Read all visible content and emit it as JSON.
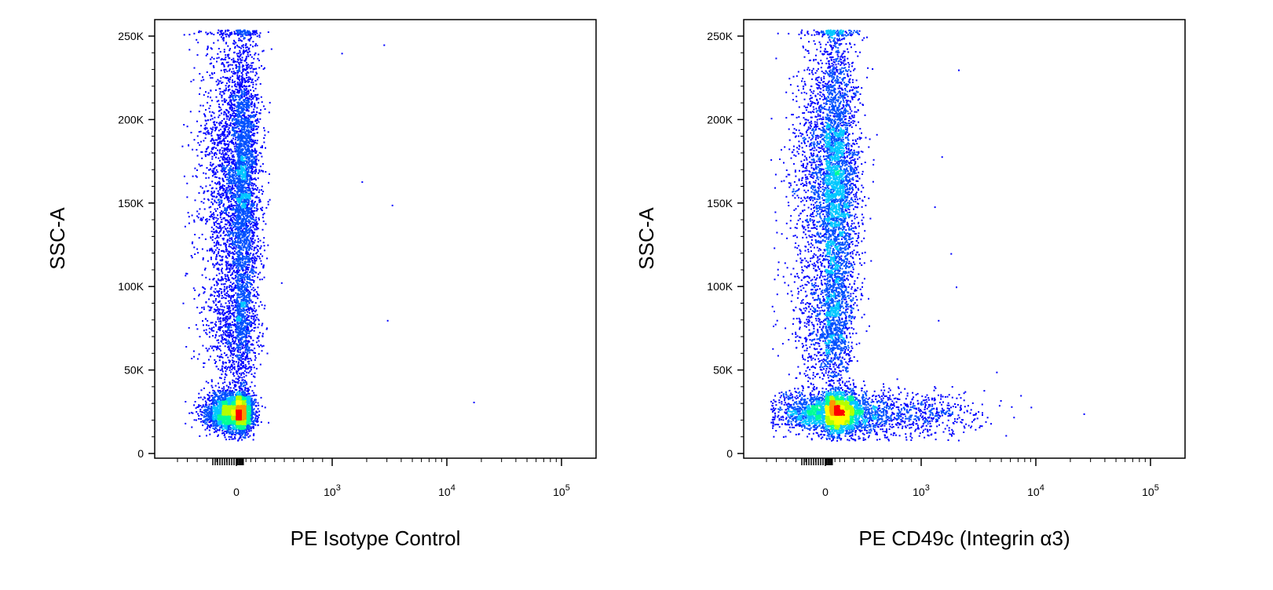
{
  "colors": {
    "density_scale": [
      "#0000ff",
      "#0050ff",
      "#00c8ff",
      "#00ff96",
      "#b4ff00",
      "#ffff00",
      "#ff9600",
      "#ff0000"
    ],
    "axes": "#000000",
    "background": "#ffffff"
  },
  "chart_data": [
    {
      "type": "scatter",
      "subtype": "flow-cytometry-density-dot-plot",
      "title": "",
      "xlabel": "PE Isotype Control",
      "ylabel": "SSC-A",
      "xscale": "biexponential",
      "xlim": [
        -300,
        100000
      ],
      "ylim": [
        0,
        262144
      ],
      "x_ticks": [
        {
          "value": 0,
          "label": "0",
          "exp": ""
        },
        {
          "value": 1000,
          "label": "10",
          "exp": "3"
        },
        {
          "value": 10000,
          "label": "10",
          "exp": "4"
        },
        {
          "value": 100000,
          "label": "10",
          "exp": "5"
        }
      ],
      "y_ticks": [
        {
          "value": 0,
          "label": "0"
        },
        {
          "value": 50000,
          "label": "50K"
        },
        {
          "value": 100000,
          "label": "100K"
        },
        {
          "value": 150000,
          "label": "150K"
        },
        {
          "value": 200000,
          "label": "200K"
        },
        {
          "value": 250000,
          "label": "250K"
        }
      ],
      "grid": false,
      "populations": [
        {
          "name": "",
          "x_center": 0,
          "x_spread": 80,
          "y_center": 25000,
          "y_spread": 6000,
          "weight": 0.38,
          "max_density": "red"
        },
        {
          "name": "",
          "x_center": 30,
          "x_spread": 100,
          "y_center": 165000,
          "y_spread": 45000,
          "weight": 0.5,
          "max_density": "green"
        },
        {
          "name": "",
          "x_center": 20,
          "x_spread": 90,
          "y_center": 75000,
          "y_spread": 20000,
          "weight": 0.12,
          "max_density": "blue"
        }
      ],
      "outliers": [
        {
          "x": 2800,
          "y": 245000
        },
        {
          "x": 1200,
          "y": 240000
        },
        {
          "x": 1800,
          "y": 163000
        },
        {
          "x": 3300,
          "y": 149000
        },
        {
          "x": 3000,
          "y": 80000
        },
        {
          "x": 17000,
          "y": 31000
        }
      ]
    },
    {
      "type": "scatter",
      "subtype": "flow-cytometry-density-dot-plot",
      "title": "",
      "xlabel": "PE CD49c (Integrin α3)",
      "ylabel": "SSC-A",
      "xscale": "biexponential",
      "xlim": [
        -300,
        100000
      ],
      "ylim": [
        0,
        262144
      ],
      "x_ticks": [
        {
          "value": 0,
          "label": "0",
          "exp": ""
        },
        {
          "value": 1000,
          "label": "10",
          "exp": "3"
        },
        {
          "value": 10000,
          "label": "10",
          "exp": "4"
        },
        {
          "value": 100000,
          "label": "10",
          "exp": "5"
        }
      ],
      "y_ticks": [
        {
          "value": 0,
          "label": "0"
        },
        {
          "value": 50000,
          "label": "50K"
        },
        {
          "value": 100000,
          "label": "100K"
        },
        {
          "value": 150000,
          "label": "150K"
        },
        {
          "value": 200000,
          "label": "200K"
        },
        {
          "value": 250000,
          "label": "250K"
        }
      ],
      "grid": false,
      "populations": [
        {
          "name": "",
          "x_center": 60,
          "x_spread": 150,
          "y_center": 25000,
          "y_spread": 6000,
          "weight": 0.28,
          "max_density": "red"
        },
        {
          "name": "",
          "x_center": 600,
          "x_spread": 500,
          "y_center": 24000,
          "y_spread": 7000,
          "weight": 0.14,
          "max_density": "green"
        },
        {
          "name": "",
          "x_center": 80,
          "x_spread": 120,
          "y_center": 165000,
          "y_spread": 45000,
          "weight": 0.46,
          "max_density": "green"
        },
        {
          "name": "",
          "x_center": 60,
          "x_spread": 110,
          "y_center": 75000,
          "y_spread": 20000,
          "weight": 0.12,
          "max_density": "blue"
        }
      ],
      "outliers": [
        {
          "x": 2100,
          "y": 230000
        },
        {
          "x": 1500,
          "y": 178000
        },
        {
          "x": 1300,
          "y": 148000
        },
        {
          "x": 1800,
          "y": 120000
        },
        {
          "x": 2000,
          "y": 100000
        },
        {
          "x": 1400,
          "y": 80000
        },
        {
          "x": 4500,
          "y": 49000
        },
        {
          "x": 9000,
          "y": 28000
        },
        {
          "x": 26000,
          "y": 24000
        },
        {
          "x": 3500,
          "y": 38000
        }
      ]
    }
  ]
}
